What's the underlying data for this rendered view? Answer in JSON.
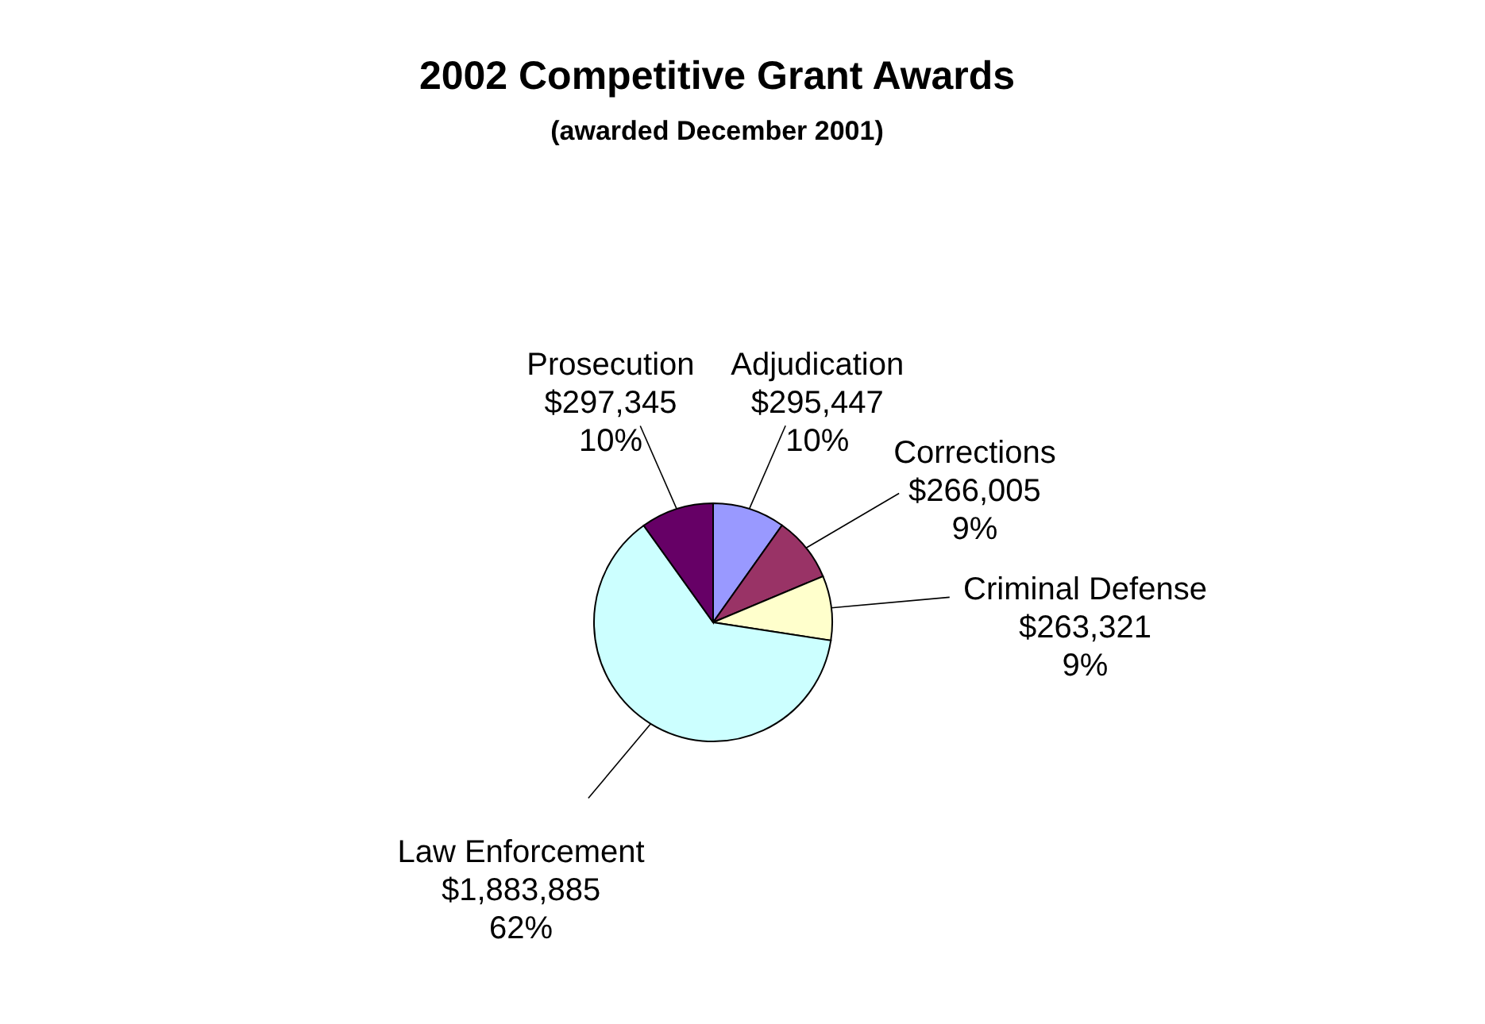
{
  "chart_data": {
    "type": "pie",
    "title": "2002 Competitive Grant Awards",
    "subtitle": "(awarded December 2001)",
    "categories": [
      "Adjudication",
      "Corrections",
      "Criminal Defense",
      "Law Enforcement",
      "Prosecution"
    ],
    "values": [
      295447,
      266005,
      263321,
      1883885,
      297345
    ],
    "colors": [
      "#9999ff",
      "#993366",
      "#ffffcc",
      "#ccffff",
      "#660066"
    ],
    "value_labels": [
      "$295,447\n10%",
      "$266,005\n9%",
      "$263,321\n9%",
      "$1,883,885\n62%",
      "$297,345\n10%"
    ]
  }
}
